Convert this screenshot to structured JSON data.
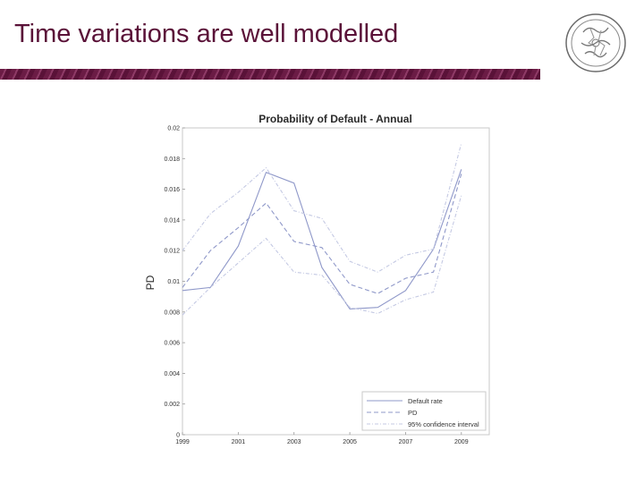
{
  "slide": {
    "title": "Time variations are well modelled"
  },
  "colors": {
    "title": "#5a1238",
    "band": "#6b1c45",
    "default_rate": "#8f98c9",
    "pd": "#8f98c9",
    "ci": "#c4c9e3"
  },
  "chart_data": {
    "type": "line",
    "title": "Probability of Default - Annual",
    "xlabel": "",
    "ylabel": "PD",
    "xlim": [
      1999,
      2010
    ],
    "ylim": [
      0,
      0.02
    ],
    "xticks": [
      "1999",
      "2001",
      "2003",
      "2005",
      "2007",
      "2009"
    ],
    "yticks": [
      "0",
      "0.002",
      "0.004",
      "0.006",
      "0.008",
      "0.01",
      "0.012",
      "0.014",
      "0.016",
      "0.018",
      "0.02"
    ],
    "x": [
      1999,
      2000,
      2001,
      2002,
      2003,
      2004,
      2005,
      2006,
      2007,
      2008,
      2009
    ],
    "legend_position": "bottom-right",
    "grid": false,
    "series": [
      {
        "name": "Default rate",
        "style": "solid",
        "values": [
          0.0094,
          0.0096,
          0.0123,
          0.0171,
          0.0164,
          0.0109,
          0.0082,
          0.0083,
          0.0094,
          0.0121,
          0.0173
        ]
      },
      {
        "name": "PD",
        "style": "dashed",
        "values": [
          0.0096,
          0.012,
          0.0135,
          0.0151,
          0.0126,
          0.0122,
          0.0098,
          0.0092,
          0.0102,
          0.0106,
          0.017
        ]
      },
      {
        "name": "95% confidence interval",
        "style": "dashdot",
        "values": [
          0.012,
          0.0144,
          0.0158,
          0.0174,
          0.0146,
          0.0141,
          0.0113,
          0.0106,
          0.0117,
          0.0121,
          0.019
        ]
      },
      {
        "name": "",
        "style": "dashdot",
        "values": [
          0.0078,
          0.0096,
          0.0112,
          0.0128,
          0.0106,
          0.0104,
          0.0083,
          0.0079,
          0.0088,
          0.0093,
          0.0156
        ]
      }
    ]
  }
}
